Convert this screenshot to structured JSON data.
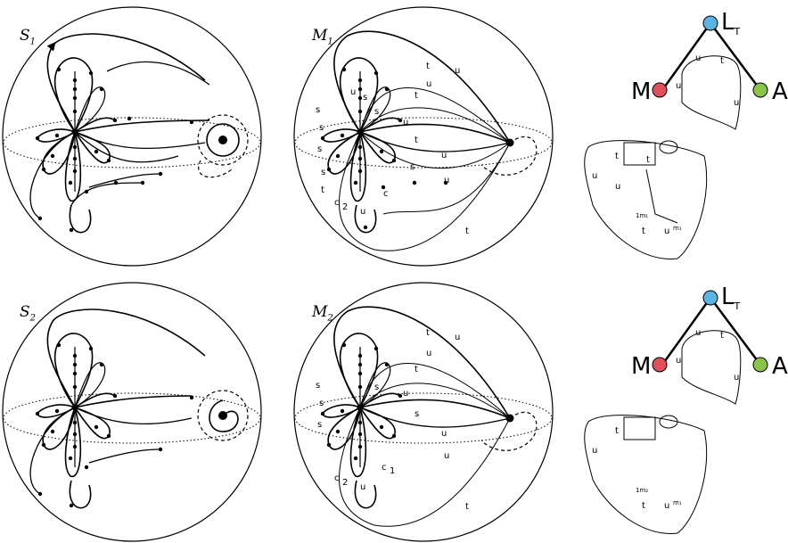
{
  "panels": [
    {
      "id": "S",
      "base": "S",
      "sub": "1"
    },
    {
      "id": "M",
      "base": "M",
      "sub": "1"
    },
    {
      "id": "S",
      "base": "S",
      "sub": "2"
    },
    {
      "id": "M",
      "base": "M",
      "sub": "2"
    }
  ],
  "tree": {
    "top_base": "L",
    "top_sub": "T",
    "left": "M",
    "right": "A",
    "colors": {
      "top": "#5bb4e3",
      "left": "#e0505a",
      "right": "#8bc548"
    }
  },
  "edge_labels": {
    "s": "s",
    "u": "u",
    "t": "t",
    "c": "c",
    "c1": "1",
    "c2": "2",
    "m": "1m₁",
    "m2": "1m₂"
  }
}
